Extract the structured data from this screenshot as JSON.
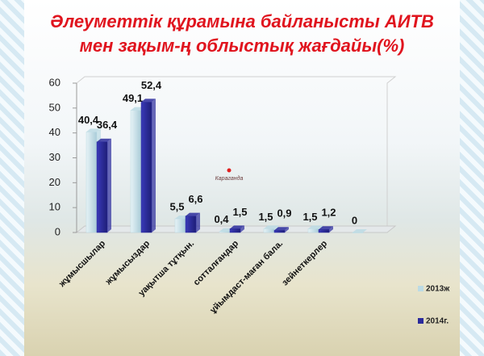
{
  "chart_data": {
    "type": "bar",
    "title": "Әлеуметтік  құрамына байланысты АИТВ мен зақым-ң облыстық жағдайы(%)",
    "map_label": "Караганда",
    "categories": [
      "жұмысшылар",
      "жұмысыздар",
      "уақытша тұтқын.",
      "сотталғандар",
      "ұйымдаст-маған бала.",
      "зейнеткерлер",
      null
    ],
    "series": [
      {
        "name": "2013ж",
        "color": "#bcdbe4",
        "values": [
          40.4,
          49.1,
          5.5,
          0.4,
          1.5,
          1.5,
          0
        ],
        "value_labels": [
          "40,4",
          "49,1",
          "5,5",
          "0,4",
          "1,5",
          "1,5",
          "0"
        ]
      },
      {
        "name": "2014г.",
        "color": "#2b2b9c",
        "values": [
          36.4,
          52.4,
          6.6,
          1.5,
          0.9,
          1.2,
          null
        ],
        "value_labels": [
          "36,4",
          "52,4",
          "6,6",
          "1,5",
          "0,9",
          "1,2",
          null
        ]
      }
    ],
    "ylim": [
      0,
      60
    ],
    "yticks": [
      0,
      10,
      20,
      30,
      40,
      50,
      60
    ],
    "grid": false,
    "legend": "bottom-right"
  }
}
